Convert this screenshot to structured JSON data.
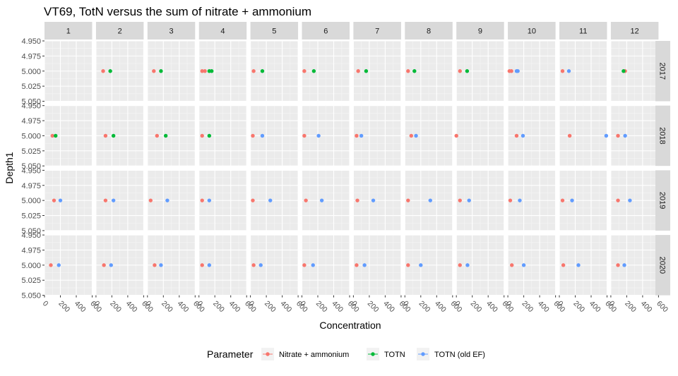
{
  "chart_data": {
    "type": "scatter",
    "title": "VT69, TotN versus the sum of nitrate + ammonium",
    "xlabel": "Concentration",
    "ylabel": "Depth1",
    "facet_columns": [
      "1",
      "2",
      "3",
      "4",
      "5",
      "6",
      "7",
      "8",
      "9",
      "10",
      "11",
      "12"
    ],
    "facet_rows": [
      "2017",
      "2018",
      "2019",
      "2020"
    ],
    "x_ticks": [
      "0",
      "200",
      "400",
      "600"
    ],
    "y_ticks": [
      "4.950",
      "4.975",
      "5.000",
      "5.025",
      "5.050"
    ],
    "xlim": [
      0,
      600
    ],
    "ylim": [
      4.95,
      5.05
    ],
    "y_reversed": true,
    "grid": true,
    "legend_position": "bottom",
    "legend_title": "Parameter",
    "series": [
      {
        "name": "Nitrate + ammonium",
        "color": "#F8766D",
        "points": [
          {
            "row": "2017",
            "col": "2",
            "x": 90,
            "y": 5.0
          },
          {
            "row": "2017",
            "col": "3",
            "x": 80,
            "y": 5.0
          },
          {
            "row": "2017",
            "col": "4",
            "x": 40,
            "y": 5.0
          },
          {
            "row": "2017",
            "col": "4",
            "x": 75,
            "y": 5.0
          },
          {
            "row": "2017",
            "col": "5",
            "x": 40,
            "y": 5.0
          },
          {
            "row": "2017",
            "col": "6",
            "x": 30,
            "y": 5.0
          },
          {
            "row": "2017",
            "col": "7",
            "x": 60,
            "y": 5.0
          },
          {
            "row": "2017",
            "col": "8",
            "x": 40,
            "y": 5.0
          },
          {
            "row": "2017",
            "col": "9",
            "x": 45,
            "y": 5.0
          },
          {
            "row": "2017",
            "col": "10",
            "x": 20,
            "y": 5.0
          },
          {
            "row": "2017",
            "col": "10",
            "x": 45,
            "y": 5.0
          },
          {
            "row": "2017",
            "col": "11",
            "x": 40,
            "y": 5.0
          },
          {
            "row": "2017",
            "col": "12",
            "x": 180,
            "y": 5.0
          },
          {
            "row": "2018",
            "col": "1",
            "x": 100,
            "y": 5.0
          },
          {
            "row": "2018",
            "col": "2",
            "x": 120,
            "y": 5.0
          },
          {
            "row": "2018",
            "col": "3",
            "x": 120,
            "y": 5.0
          },
          {
            "row": "2018",
            "col": "4",
            "x": 40,
            "y": 5.0
          },
          {
            "row": "2018",
            "col": "5",
            "x": 30,
            "y": 5.0
          },
          {
            "row": "2018",
            "col": "6",
            "x": 30,
            "y": 5.0
          },
          {
            "row": "2018",
            "col": "7",
            "x": 40,
            "y": 5.0
          },
          {
            "row": "2018",
            "col": "8",
            "x": 80,
            "y": 5.0
          },
          {
            "row": "2018",
            "col": "9",
            "x": 0,
            "y": 5.0
          },
          {
            "row": "2018",
            "col": "10",
            "x": 110,
            "y": 5.0
          },
          {
            "row": "2018",
            "col": "11",
            "x": 130,
            "y": 5.0
          },
          {
            "row": "2018",
            "col": "12",
            "x": 90,
            "y": 5.0
          },
          {
            "row": "2019",
            "col": "1",
            "x": 120,
            "y": 5.0
          },
          {
            "row": "2019",
            "col": "2",
            "x": 120,
            "y": 5.0
          },
          {
            "row": "2019",
            "col": "3",
            "x": 40,
            "y": 5.0
          },
          {
            "row": "2019",
            "col": "4",
            "x": 40,
            "y": 5.0
          },
          {
            "row": "2019",
            "col": "5",
            "x": 30,
            "y": 5.0
          },
          {
            "row": "2019",
            "col": "6",
            "x": 50,
            "y": 5.0
          },
          {
            "row": "2019",
            "col": "7",
            "x": 50,
            "y": 5.0
          },
          {
            "row": "2019",
            "col": "8",
            "x": 40,
            "y": 5.0
          },
          {
            "row": "2019",
            "col": "9",
            "x": 45,
            "y": 5.0
          },
          {
            "row": "2019",
            "col": "10",
            "x": 30,
            "y": 5.0
          },
          {
            "row": "2019",
            "col": "11",
            "x": 40,
            "y": 5.0
          },
          {
            "row": "2019",
            "col": "12",
            "x": 90,
            "y": 5.0
          },
          {
            "row": "2020",
            "col": "1",
            "x": 80,
            "y": 5.0
          },
          {
            "row": "2020",
            "col": "2",
            "x": 100,
            "y": 5.0
          },
          {
            "row": "2020",
            "col": "3",
            "x": 90,
            "y": 5.0
          },
          {
            "row": "2020",
            "col": "4",
            "x": 40,
            "y": 5.0
          },
          {
            "row": "2020",
            "col": "5",
            "x": 40,
            "y": 5.0
          },
          {
            "row": "2020",
            "col": "6",
            "x": 30,
            "y": 5.0
          },
          {
            "row": "2020",
            "col": "7",
            "x": 40,
            "y": 5.0
          },
          {
            "row": "2020",
            "col": "8",
            "x": 40,
            "y": 5.0
          },
          {
            "row": "2020",
            "col": "9",
            "x": 45,
            "y": 5.0
          },
          {
            "row": "2020",
            "col": "10",
            "x": 50,
            "y": 5.0
          },
          {
            "row": "2020",
            "col": "11",
            "x": 50,
            "y": 5.0
          },
          {
            "row": "2020",
            "col": "12",
            "x": 90,
            "y": 5.0
          }
        ]
      },
      {
        "name": "TOTN",
        "color": "#00BA38",
        "points": [
          {
            "row": "2017",
            "col": "2",
            "x": 180,
            "y": 5.0
          },
          {
            "row": "2017",
            "col": "3",
            "x": 170,
            "y": 5.0
          },
          {
            "row": "2017",
            "col": "4",
            "x": 130,
            "y": 5.0
          },
          {
            "row": "2017",
            "col": "4",
            "x": 160,
            "y": 5.0
          },
          {
            "row": "2017",
            "col": "5",
            "x": 150,
            "y": 5.0
          },
          {
            "row": "2017",
            "col": "6",
            "x": 150,
            "y": 5.0
          },
          {
            "row": "2017",
            "col": "7",
            "x": 160,
            "y": 5.0
          },
          {
            "row": "2017",
            "col": "8",
            "x": 120,
            "y": 5.0
          },
          {
            "row": "2017",
            "col": "9",
            "x": 135,
            "y": 5.0
          },
          {
            "row": "2017",
            "col": "12",
            "x": 160,
            "y": 5.0
          },
          {
            "row": "2018",
            "col": "1",
            "x": 140,
            "y": 5.0
          },
          {
            "row": "2018",
            "col": "2",
            "x": 220,
            "y": 5.0
          },
          {
            "row": "2018",
            "col": "3",
            "x": 230,
            "y": 5.0
          },
          {
            "row": "2018",
            "col": "4",
            "x": 130,
            "y": 5.0
          }
        ]
      },
      {
        "name": "TOTN (old EF)",
        "color": "#619CFF",
        "points": [
          {
            "row": "2017",
            "col": "10",
            "x": 110,
            "y": 5.0
          },
          {
            "row": "2017",
            "col": "10",
            "x": 125,
            "y": 5.0
          },
          {
            "row": "2017",
            "col": "11",
            "x": 120,
            "y": 5.0
          },
          {
            "row": "2018",
            "col": "5",
            "x": 150,
            "y": 5.0
          },
          {
            "row": "2018",
            "col": "6",
            "x": 210,
            "y": 5.0
          },
          {
            "row": "2018",
            "col": "7",
            "x": 100,
            "y": 5.0
          },
          {
            "row": "2018",
            "col": "8",
            "x": 140,
            "y": 5.0
          },
          {
            "row": "2018",
            "col": "10",
            "x": 190,
            "y": 5.0
          },
          {
            "row": "2018",
            "col": "11",
            "x": 590,
            "y": 5.0
          },
          {
            "row": "2018",
            "col": "12",
            "x": 180,
            "y": 5.0
          },
          {
            "row": "2019",
            "col": "1",
            "x": 200,
            "y": 5.0
          },
          {
            "row": "2019",
            "col": "2",
            "x": 220,
            "y": 5.0
          },
          {
            "row": "2019",
            "col": "3",
            "x": 250,
            "y": 5.0
          },
          {
            "row": "2019",
            "col": "4",
            "x": 130,
            "y": 5.0
          },
          {
            "row": "2019",
            "col": "5",
            "x": 250,
            "y": 5.0
          },
          {
            "row": "2019",
            "col": "6",
            "x": 250,
            "y": 5.0
          },
          {
            "row": "2019",
            "col": "7",
            "x": 250,
            "y": 5.0
          },
          {
            "row": "2019",
            "col": "8",
            "x": 320,
            "y": 5.0
          },
          {
            "row": "2019",
            "col": "9",
            "x": 160,
            "y": 5.0
          },
          {
            "row": "2019",
            "col": "10",
            "x": 150,
            "y": 5.0
          },
          {
            "row": "2019",
            "col": "11",
            "x": 160,
            "y": 5.0
          },
          {
            "row": "2019",
            "col": "12",
            "x": 240,
            "y": 5.0
          },
          {
            "row": "2020",
            "col": "1",
            "x": 180,
            "y": 5.0
          },
          {
            "row": "2020",
            "col": "2",
            "x": 190,
            "y": 5.0
          },
          {
            "row": "2020",
            "col": "3",
            "x": 170,
            "y": 5.0
          },
          {
            "row": "2020",
            "col": "4",
            "x": 130,
            "y": 5.0
          },
          {
            "row": "2020",
            "col": "5",
            "x": 130,
            "y": 5.0
          },
          {
            "row": "2020",
            "col": "6",
            "x": 140,
            "y": 5.0
          },
          {
            "row": "2020",
            "col": "7",
            "x": 140,
            "y": 5.0
          },
          {
            "row": "2020",
            "col": "8",
            "x": 200,
            "y": 5.0
          },
          {
            "row": "2020",
            "col": "9",
            "x": 140,
            "y": 5.0
          },
          {
            "row": "2020",
            "col": "10",
            "x": 200,
            "y": 5.0
          },
          {
            "row": "2020",
            "col": "11",
            "x": 240,
            "y": 5.0
          },
          {
            "row": "2020",
            "col": "12",
            "x": 170,
            "y": 5.0
          }
        ]
      }
    ]
  }
}
